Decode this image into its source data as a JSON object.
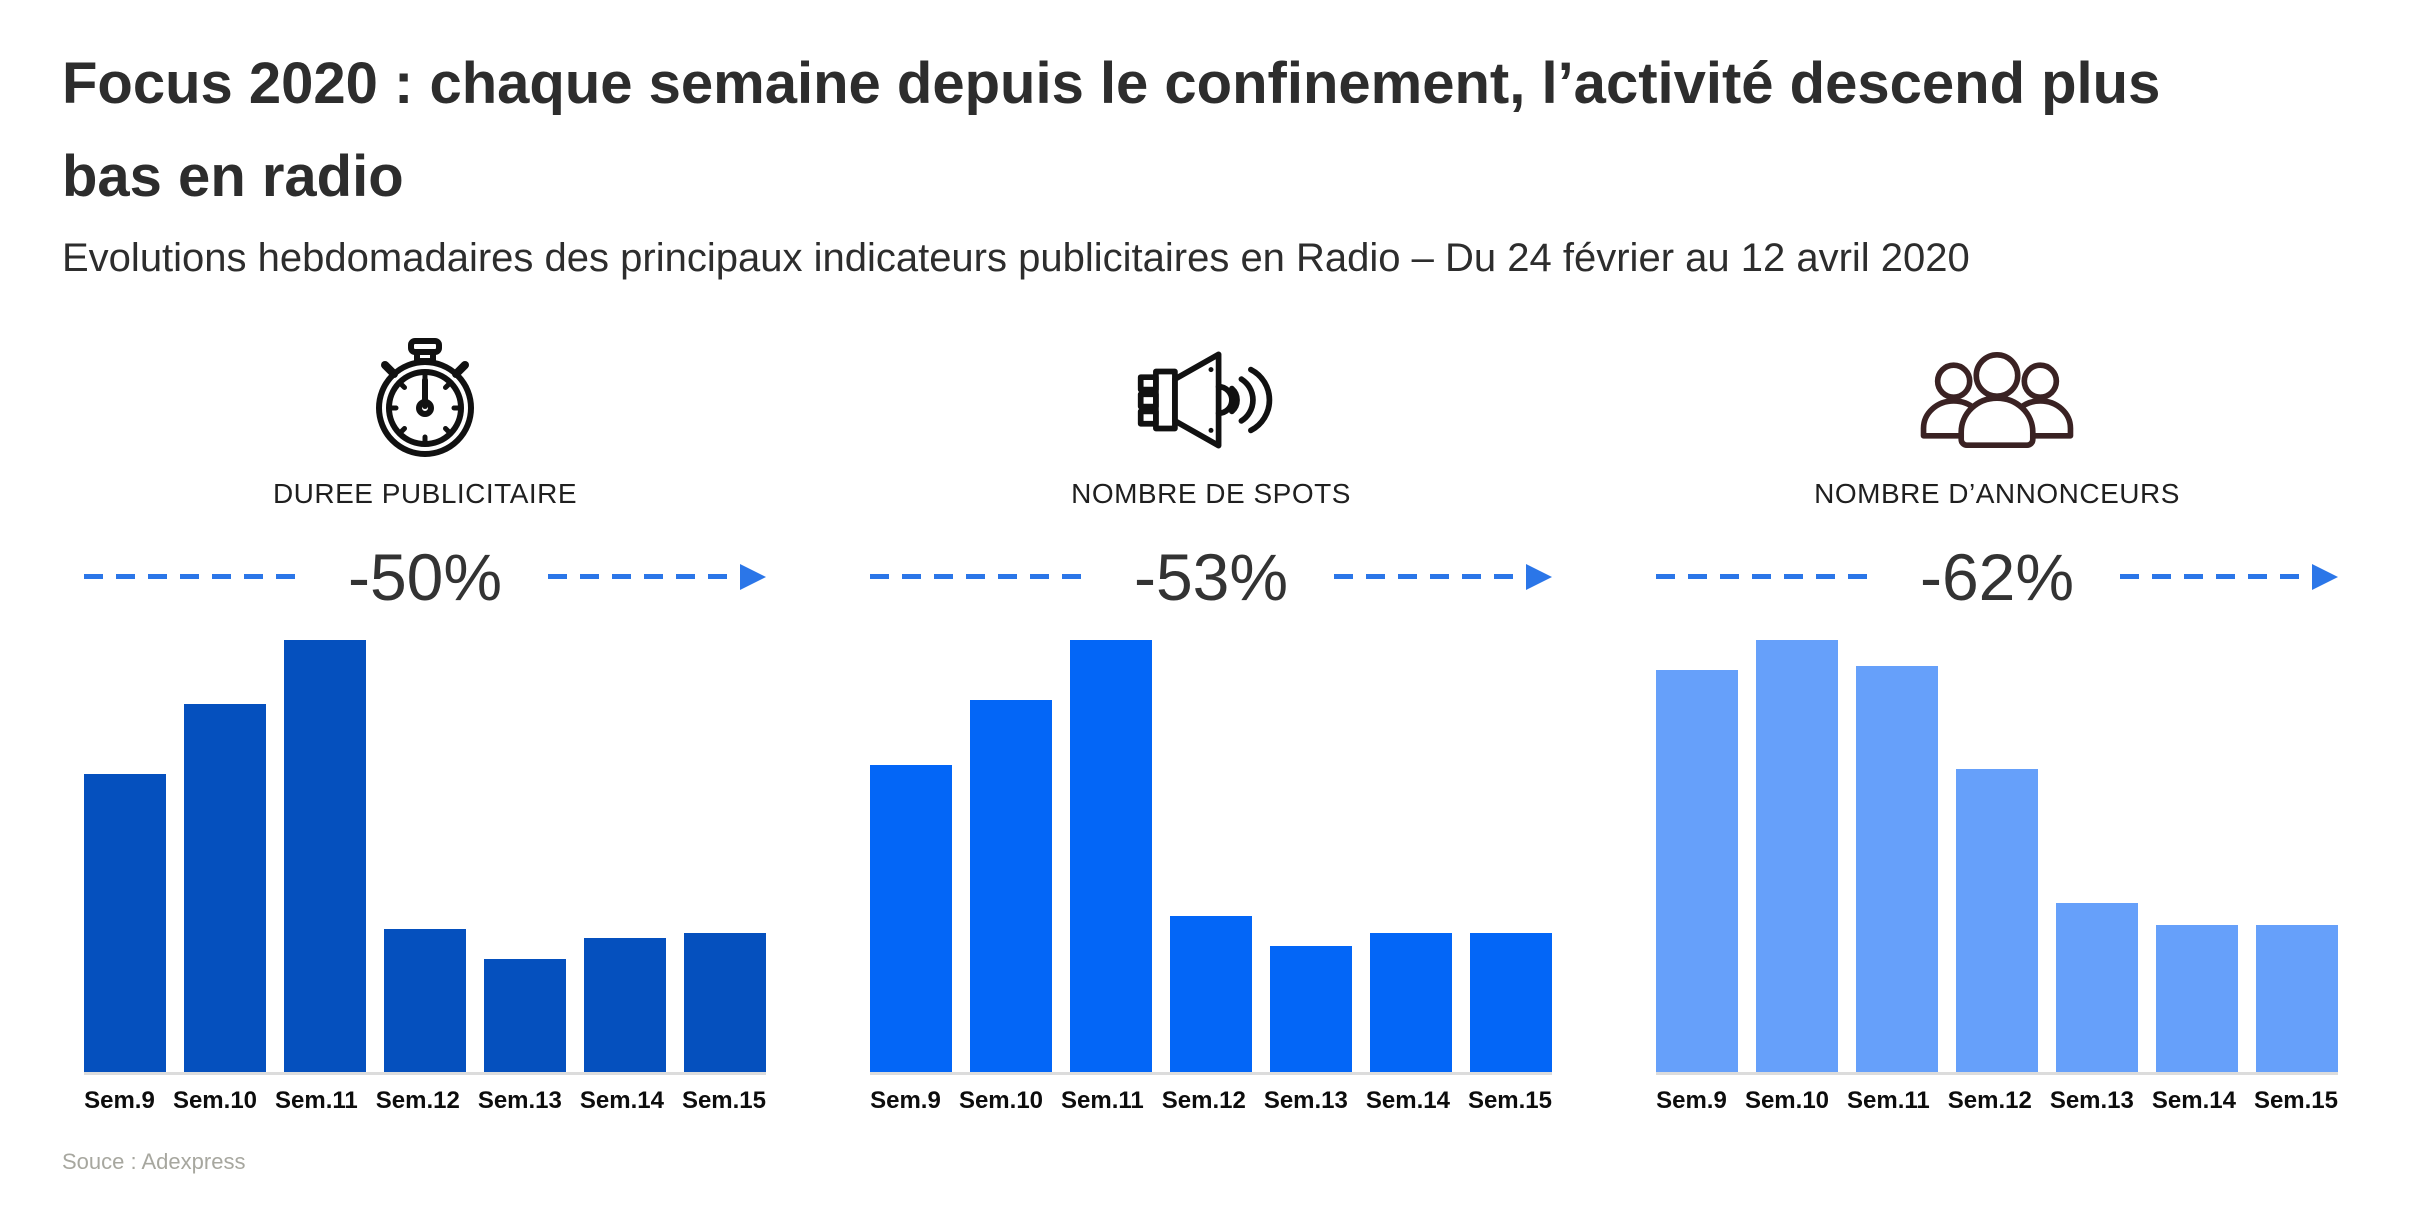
{
  "header": {
    "title_line1": "Focus 2020 : chaque semaine depuis le confinement, l’activité descend plus",
    "title_line2": "bas en radio",
    "subtitle": "Evolutions hebdomadaires des principaux indicateurs publicitaires en Radio – Du 24 février au 12 avril 2020"
  },
  "theme": {
    "title_color": "#2d2d2d",
    "arrow_color": "#2b76e8",
    "percent_color": "#333333",
    "axis_color": "#dcdcdc",
    "source_color": "#a7a79f"
  },
  "chart_data": [
    {
      "type": "bar",
      "title": "DUREE PUBLICITAIRE",
      "icon": "stopwatch-icon",
      "icon_color": "#111111",
      "change_label": "-50%",
      "categories": [
        "Sem.9",
        "Sem.10",
        "Sem.11",
        "Sem.12",
        "Sem.13",
        "Sem.14",
        "Sem.15"
      ],
      "values": [
        69,
        85,
        100,
        33,
        26,
        31,
        32
      ],
      "values_note": "relative height, % of tallest bar (no numeric axis shown)",
      "bar_color": "#0550be",
      "xlabel": "",
      "ylabel": "",
      "grid": false,
      "legend": "none"
    },
    {
      "type": "bar",
      "title": "NOMBRE DE SPOTS",
      "icon": "speaker-icon",
      "icon_color": "#111111",
      "change_label": "-53%",
      "categories": [
        "Sem.9",
        "Sem.10",
        "Sem.11",
        "Sem.12",
        "Sem.13",
        "Sem.14",
        "Sem.15"
      ],
      "values": [
        71,
        86,
        100,
        36,
        29,
        32,
        32
      ],
      "values_note": "relative height, % of tallest bar (no numeric axis shown)",
      "bar_color": "#0366f7",
      "xlabel": "",
      "ylabel": "",
      "grid": false,
      "legend": "none"
    },
    {
      "type": "bar",
      "title": "NOMBRE D’ANNONCEURS",
      "icon": "people-icon",
      "icon_color": "#3a2223",
      "change_label": "-62%",
      "categories": [
        "Sem.9",
        "Sem.10",
        "Sem.11",
        "Sem.12",
        "Sem.13",
        "Sem.14",
        "Sem.15"
      ],
      "values": [
        93,
        100,
        94,
        70,
        39,
        34,
        34
      ],
      "values_note": "relative height, % of tallest bar (no numeric axis shown)",
      "bar_color": "#66a0fa",
      "xlabel": "",
      "ylabel": "",
      "grid": false,
      "legend": "none"
    }
  ],
  "footer": {
    "source": "Souce : Adexpress"
  }
}
